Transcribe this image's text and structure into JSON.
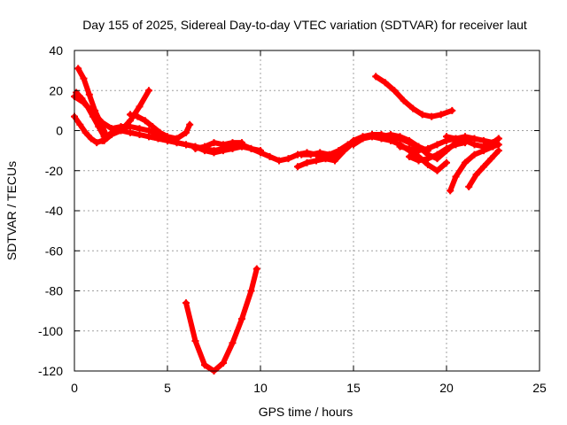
{
  "chart_data": {
    "type": "line",
    "title": "Day 155 of 2025, Sidereal Day-to-day VTEC variation (SDTVAR) for receiver laut",
    "xlabel": "GPS time / hours",
    "ylabel": "SDTVAR / TECUs",
    "xlim": [
      0,
      25
    ],
    "ylim": [
      -120,
      40
    ],
    "xticks": [
      0,
      5,
      10,
      15,
      20,
      25
    ],
    "yticks": [
      -120,
      -100,
      -80,
      -60,
      -40,
      -20,
      0,
      20,
      40
    ],
    "grid": true,
    "legend": "none",
    "color": "#ff0000",
    "series": [
      {
        "x": [
          0.0,
          0.3,
          0.6,
          0.9,
          1.2,
          1.5,
          1.8,
          2.0
        ],
        "y": [
          7,
          3,
          -1,
          -4,
          -6,
          -5,
          -3,
          -1
        ]
      },
      {
        "x": [
          0.1,
          0.4,
          0.7,
          1.0,
          1.3,
          1.6
        ],
        "y": [
          19,
          16,
          12,
          7,
          2,
          -3
        ]
      },
      {
        "x": [
          0.2,
          0.5,
          0.8,
          1.1,
          1.4,
          1.7
        ],
        "y": [
          31,
          26,
          18,
          10,
          4,
          -2
        ]
      },
      {
        "x": [
          0.0,
          0.5,
          1.0,
          1.5,
          2.0,
          2.5,
          3.0,
          3.5,
          4.0,
          4.5,
          5.0,
          5.5,
          6.0,
          6.5,
          7.0,
          7.5,
          8.0,
          8.5,
          9.0,
          9.5,
          10.0,
          10.5,
          11.0,
          11.5,
          12.0,
          12.5,
          13.0,
          13.5,
          14.0,
          14.5,
          15.0,
          15.5,
          16.0,
          16.5,
          17.0,
          17.5,
          18.0,
          18.5,
          19.0
        ],
        "y": [
          17,
          14,
          9,
          4,
          1,
          0,
          -1,
          -2,
          -3,
          -4,
          -5,
          -6,
          -7,
          -8,
          -9,
          -10,
          -9,
          -8,
          -7,
          -9,
          -11,
          -13,
          -15,
          -14,
          -12,
          -11,
          -12,
          -14,
          -12,
          -9,
          -5,
          -3,
          -2,
          -2,
          -3,
          -4,
          -6,
          -8,
          -10
        ]
      },
      {
        "x": [
          1.6,
          2.0,
          2.5,
          3.0,
          3.5,
          4.0
        ],
        "y": [
          -5,
          -2,
          0,
          5,
          12,
          20
        ]
      },
      {
        "x": [
          2.0,
          2.5,
          3.0,
          3.5,
          4.0,
          4.5,
          5.0
        ],
        "y": [
          1,
          2,
          2,
          1,
          0,
          -2,
          -4
        ]
      },
      {
        "x": [
          3.0,
          3.4,
          3.8,
          4.2,
          4.6,
          5.0,
          5.5,
          6.0,
          6.2
        ],
        "y": [
          8,
          7,
          5,
          2,
          -1,
          -3,
          -4,
          -1,
          3
        ]
      },
      {
        "x": [
          4.0,
          4.5,
          5.0,
          5.5,
          6.0,
          6.5,
          7.0,
          7.5,
          8.0,
          8.5,
          9.0,
          9.5,
          10.0
        ],
        "y": [
          -3,
          -4,
          -5,
          -6,
          -7,
          -8,
          -10,
          -11,
          -10,
          -9,
          -8,
          -9,
          -10
        ]
      },
      {
        "x": [
          6.0,
          6.5,
          7.0,
          7.5,
          8.0,
          8.5,
          9.0,
          9.5,
          9.8
        ],
        "y": [
          -86,
          -105,
          -117,
          -120,
          -116,
          -106,
          -94,
          -80,
          -69
        ]
      },
      {
        "x": [
          6.5,
          7.0,
          7.5,
          8.0,
          8.5,
          9.0
        ],
        "y": [
          -9,
          -8,
          -6,
          -7,
          -6,
          -6
        ]
      },
      {
        "x": [
          12.0,
          12.5,
          13.0,
          13.5,
          14.0,
          14.5,
          15.0,
          15.5
        ],
        "y": [
          -18,
          -16,
          -15,
          -14,
          -15,
          -10,
          -6,
          -4
        ]
      },
      {
        "x": [
          12.2,
          12.7,
          13.2,
          13.7,
          14.2,
          14.7
        ],
        "y": [
          -12,
          -12,
          -11,
          -12,
          -10,
          -7
        ]
      },
      {
        "x": [
          15.0,
          15.5,
          16.0,
          16.5,
          17.0,
          17.5,
          18.0,
          18.5,
          19.0,
          19.5,
          20.0
        ],
        "y": [
          -7,
          -4,
          -3,
          -4,
          -5,
          -7,
          -10,
          -13,
          -17,
          -20,
          -16
        ]
      },
      {
        "x": [
          16.0,
          16.5,
          17.0,
          17.5,
          18.0,
          18.5,
          19.0,
          19.5,
          20.0,
          20.5
        ],
        "y": [
          -3,
          -3,
          -2,
          -3,
          -5,
          -8,
          -12,
          -14,
          -10,
          -6
        ]
      },
      {
        "x": [
          16.2,
          16.7,
          17.2,
          17.7,
          18.2,
          18.7,
          19.2,
          19.7,
          20.3
        ],
        "y": [
          27,
          24,
          20,
          15,
          11,
          8,
          7,
          8,
          10
        ]
      },
      {
        "x": [
          17.5,
          18.0,
          18.5,
          19.0,
          19.5,
          20.0,
          20.5,
          21.0,
          21.5,
          22.0,
          22.5,
          22.8
        ],
        "y": [
          -8,
          -9,
          -10,
          -9,
          -7,
          -5,
          -4,
          -3,
          -4,
          -5,
          -6,
          -4
        ]
      },
      {
        "x": [
          18.0,
          18.5,
          19.0,
          19.5,
          20.0,
          20.5,
          21.0
        ],
        "y": [
          -13,
          -15,
          -14,
          -12,
          -9,
          -7,
          -6
        ]
      },
      {
        "x": [
          20.0,
          20.5,
          21.0,
          21.5,
          22.0,
          22.5,
          22.8
        ],
        "y": [
          -3,
          -4,
          -5,
          -7,
          -8,
          -6,
          -4
        ]
      },
      {
        "x": [
          20.2,
          20.5,
          21.0,
          21.5,
          22.0,
          22.5,
          22.8
        ],
        "y": [
          -30,
          -23,
          -16,
          -12,
          -10,
          -8,
          -7
        ]
      },
      {
        "x": [
          21.2,
          21.6,
          22.0,
          22.4,
          22.8
        ],
        "y": [
          -28,
          -22,
          -18,
          -14,
          -10
        ]
      }
    ]
  }
}
